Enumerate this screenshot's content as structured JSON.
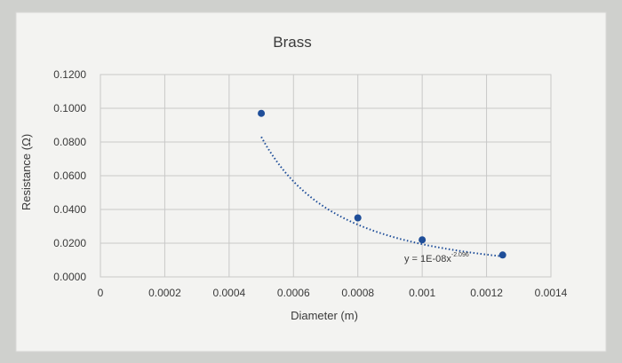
{
  "chart_data": {
    "type": "scatter",
    "title": "Brass",
    "xlabel": "Diameter (m)",
    "ylabel": "Resistance (Ω)",
    "xlim": [
      0,
      0.0014
    ],
    "ylim": [
      0,
      0.12
    ],
    "x_ticks": [
      "0",
      "0.0002",
      "0.0004",
      "0.0006",
      "0.0008",
      "0.001",
      "0.0012",
      "0.0014"
    ],
    "y_ticks": [
      "0.0000",
      "0.0200",
      "0.0400",
      "0.0600",
      "0.0800",
      "0.1000",
      "0.1200"
    ],
    "grid": true,
    "series": [
      {
        "points": [
          {
            "x": 0.0005,
            "y": 0.097
          },
          {
            "x": 0.0008,
            "y": 0.035
          },
          {
            "x": 0.001,
            "y": 0.022
          },
          {
            "x": 0.00125,
            "y": 0.013
          }
        ]
      }
    ],
    "trendline": {
      "type": "power",
      "equation": "y = 1E-08x",
      "exponent": "-2.096",
      "coef": 1e-08,
      "power": -2.096,
      "x_range": [
        0.0005,
        0.00125
      ]
    },
    "colors": {
      "marker": "#1f4e99",
      "trendline": "#1f4e99",
      "grid": "#c8c8c8",
      "plot_bg": "#f3f3f1"
    }
  }
}
